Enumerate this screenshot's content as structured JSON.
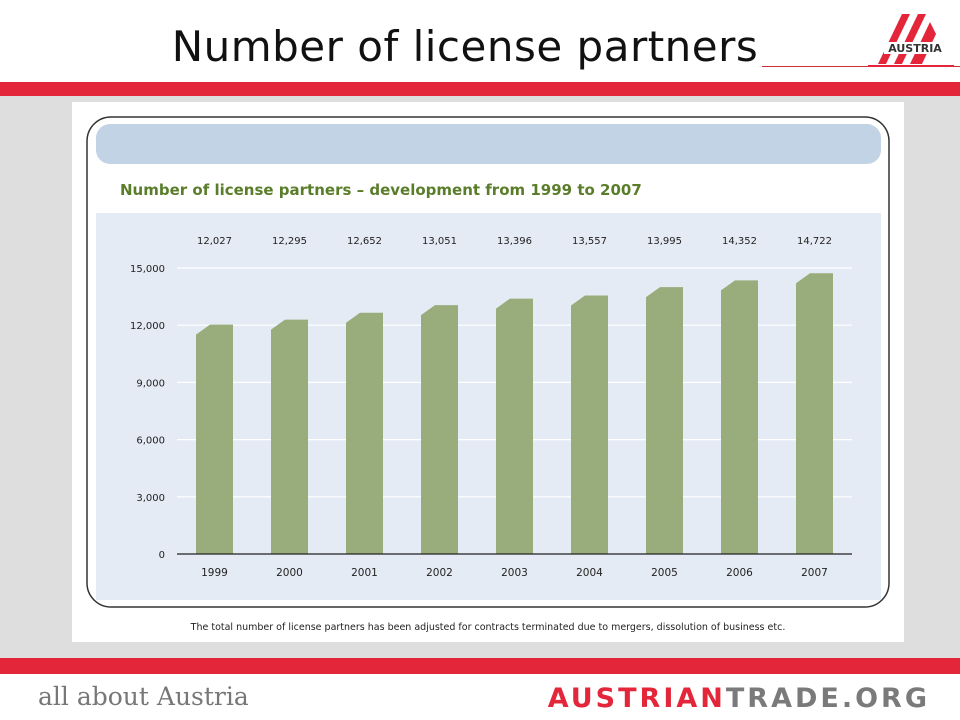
{
  "header": {
    "title": "Number of license partners",
    "logo_text": "AUSTRIA"
  },
  "footer": {
    "left_text": "all about Austria",
    "brand_part1": "AUSTRIAN",
    "brand_part2": "TRADE.ORG"
  },
  "colors": {
    "accent_red": "#e3263a",
    "bar_green": "#99ac7b",
    "header_strip": "#c2d3e6",
    "plot_bg": "#e5ebf4",
    "subtitle_green": "#5a7d2a"
  },
  "chart_data": {
    "type": "bar",
    "title": "Number of license partners – development from 1999 to 2007",
    "categories": [
      "1999",
      "2000",
      "2001",
      "2002",
      "2003",
      "2004",
      "2005",
      "2006",
      "2007"
    ],
    "values": [
      12027,
      12295,
      12652,
      13051,
      13396,
      13557,
      13995,
      14352,
      14722
    ],
    "value_labels": [
      "12,027",
      "12,295",
      "12,652",
      "13,051",
      "13,396",
      "13,557",
      "13,995",
      "14,352",
      "14,722"
    ],
    "yticks": [
      0,
      3000,
      6000,
      9000,
      12000,
      15000
    ],
    "ytick_labels": [
      "0",
      "3,000",
      "6,000",
      "9,000",
      "12,000",
      "15,000"
    ],
    "ylim": [
      0,
      15000
    ],
    "xlabel": "",
    "ylabel": "",
    "grid": true,
    "legend": "none",
    "footnote": "The total number of license partners has been adjusted for contracts terminated due to mergers, dissolution of business etc."
  }
}
